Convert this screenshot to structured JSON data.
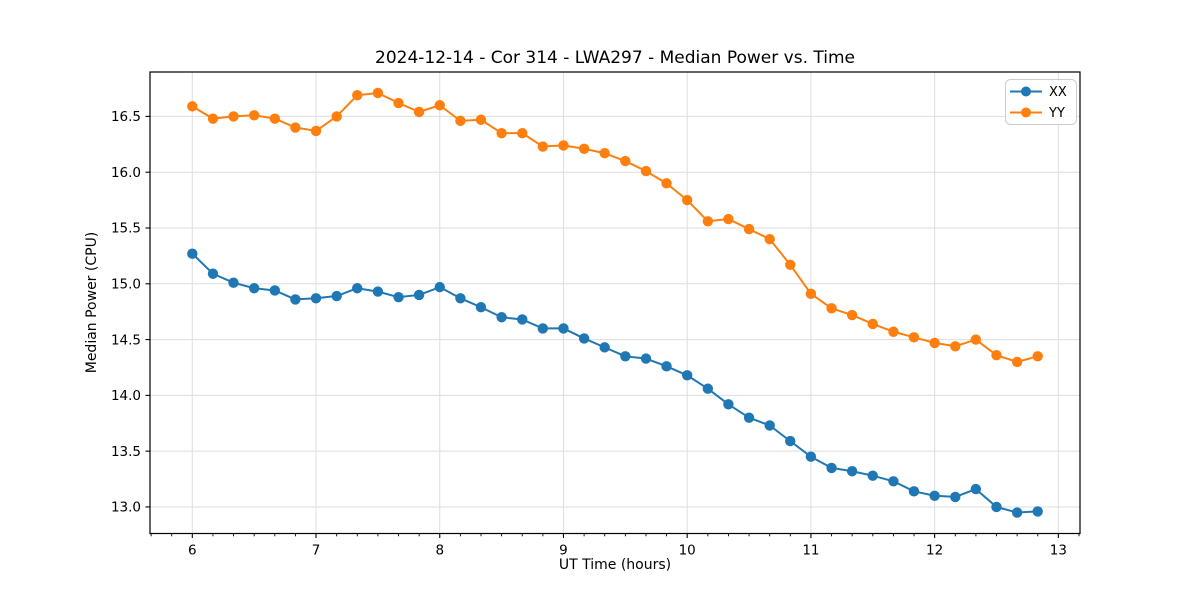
{
  "chart_data": {
    "type": "line",
    "title": "2024-12-14 - Cor 314 - LWA297 - Median Power vs. Time",
    "xlabel": "UT Time (hours)",
    "ylabel": "Median Power (CPU)",
    "xlim": [
      5.658,
      13.175
    ],
    "ylim": [
      12.762,
      16.898
    ],
    "xticks": [
      6,
      7,
      8,
      9,
      10,
      11,
      12,
      13
    ],
    "xticklabels": [
      "6",
      "7",
      "8",
      "9",
      "10",
      "11",
      "12",
      "13"
    ],
    "yticks": [
      13.0,
      13.5,
      14.0,
      14.5,
      15.0,
      15.5,
      16.0,
      16.5
    ],
    "yticklabels": [
      "13.0",
      "13.5",
      "14.0",
      "14.5",
      "15.0",
      "15.5",
      "16.0",
      "16.5"
    ],
    "minor_xtick_step": 0.16667,
    "grid": true,
    "legend_position": "upper right",
    "x": [
      6.0,
      6.167,
      6.333,
      6.5,
      6.667,
      6.833,
      7.0,
      7.167,
      7.333,
      7.5,
      7.667,
      7.833,
      8.0,
      8.167,
      8.333,
      8.5,
      8.667,
      8.833,
      9.0,
      9.167,
      9.333,
      9.5,
      9.667,
      9.833,
      10.0,
      10.167,
      10.333,
      10.5,
      10.667,
      10.833,
      11.0,
      11.167,
      11.333,
      11.5,
      11.667,
      11.833,
      12.0,
      12.167,
      12.333,
      12.5,
      12.667,
      12.833
    ],
    "series": [
      {
        "name": "XX",
        "color": "#1f77b4",
        "values": [
          15.27,
          15.09,
          15.01,
          14.96,
          14.94,
          14.86,
          14.87,
          14.89,
          14.96,
          14.93,
          14.88,
          14.9,
          14.97,
          14.87,
          14.79,
          14.7,
          14.68,
          14.6,
          14.6,
          14.51,
          14.43,
          14.35,
          14.33,
          14.26,
          14.18,
          14.06,
          13.92,
          13.8,
          13.73,
          13.59,
          13.45,
          13.35,
          13.32,
          13.28,
          13.23,
          13.14,
          13.1,
          13.09,
          13.16,
          13.0,
          12.95,
          12.96
        ]
      },
      {
        "name": "YY",
        "color": "#ff7f0e",
        "values": [
          16.59,
          16.48,
          16.5,
          16.51,
          16.48,
          16.4,
          16.37,
          16.5,
          16.69,
          16.71,
          16.62,
          16.54,
          16.6,
          16.46,
          16.47,
          16.35,
          16.35,
          16.23,
          16.24,
          16.21,
          16.17,
          16.1,
          16.01,
          15.9,
          15.75,
          15.56,
          15.58,
          15.49,
          15.4,
          15.17,
          14.91,
          14.78,
          14.72,
          14.64,
          14.57,
          14.52,
          14.47,
          14.44,
          14.5,
          14.36,
          14.3,
          14.35
        ]
      }
    ]
  },
  "colors": {
    "background": "#ffffff",
    "grid": "#dedede",
    "spine": "#000000",
    "legend_border": "#cccccc"
  }
}
